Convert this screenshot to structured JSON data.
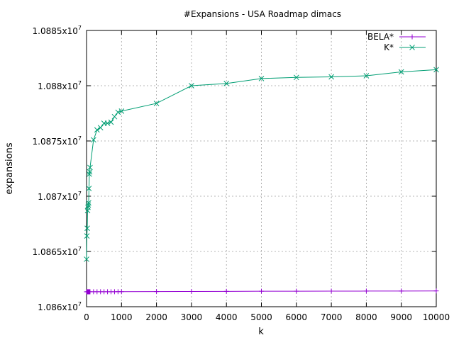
{
  "chart_data": {
    "type": "line",
    "title": "#Expansions - USA Roadmap dimacs",
    "xlabel": "k",
    "ylabel": "expansions",
    "xlim": [
      0,
      10000
    ],
    "ylim": [
      10860000,
      10885000
    ],
    "x_ticks": [
      0,
      1000,
      2000,
      3000,
      4000,
      5000,
      6000,
      7000,
      8000,
      9000,
      10000
    ],
    "x_tick_labels": [
      "0",
      "1000",
      "2000",
      "3000",
      "4000",
      "5000",
      "6000",
      "7000",
      "8000",
      "9000",
      "10000"
    ],
    "y_ticks": [
      10860000,
      10865000,
      10870000,
      10875000,
      10880000,
      10885000
    ],
    "y_tick_labels": [
      {
        "mantissa": "1.086x10",
        "exp": "7"
      },
      {
        "mantissa": "1.0865x10",
        "exp": "7"
      },
      {
        "mantissa": "1.087x10",
        "exp": "7"
      },
      {
        "mantissa": "1.0875x10",
        "exp": "7"
      },
      {
        "mantissa": "1.088x10",
        "exp": "7"
      },
      {
        "mantissa": "1.0885x10",
        "exp": "7"
      }
    ],
    "grid": true,
    "legend_position": "top-right",
    "series": [
      {
        "name": "BELA*",
        "color": "#9400d3",
        "marker": "plus",
        "x": [
          1,
          10,
          20,
          30,
          40,
          50,
          60,
          70,
          80,
          90,
          100,
          200,
          300,
          400,
          500,
          600,
          700,
          800,
          900,
          1000,
          2000,
          3000,
          4000,
          5000,
          6000,
          7000,
          8000,
          9000,
          10000
        ],
        "y": [
          10861350,
          10861350,
          10861350,
          10861350,
          10861350,
          10861350,
          10861350,
          10861350,
          10861350,
          10861350,
          10861350,
          10861355,
          10861355,
          10861355,
          10861355,
          10861355,
          10861355,
          10861355,
          10861360,
          10861360,
          10861370,
          10861380,
          10861390,
          10861400,
          10861405,
          10861410,
          10861415,
          10861420,
          10861430
        ]
      },
      {
        "name": "K*",
        "color": "#009e73",
        "marker": "cross",
        "x": [
          1,
          10,
          20,
          30,
          40,
          50,
          60,
          70,
          80,
          90,
          100,
          200,
          300,
          400,
          500,
          600,
          700,
          800,
          900,
          1000,
          2000,
          3000,
          4000,
          5000,
          6000,
          7000,
          8000,
          9000,
          10000
        ],
        "y": [
          10864300,
          10866400,
          10867100,
          10868700,
          10869000,
          10869200,
          10869400,
          10870700,
          10872000,
          10872200,
          10872600,
          10875100,
          10876000,
          10876200,
          10876600,
          10876600,
          10876700,
          10877200,
          10877600,
          10877700,
          10878400,
          10880000,
          10880200,
          10880650,
          10880750,
          10880800,
          10880900,
          10881250,
          10881450
        ]
      }
    ]
  }
}
